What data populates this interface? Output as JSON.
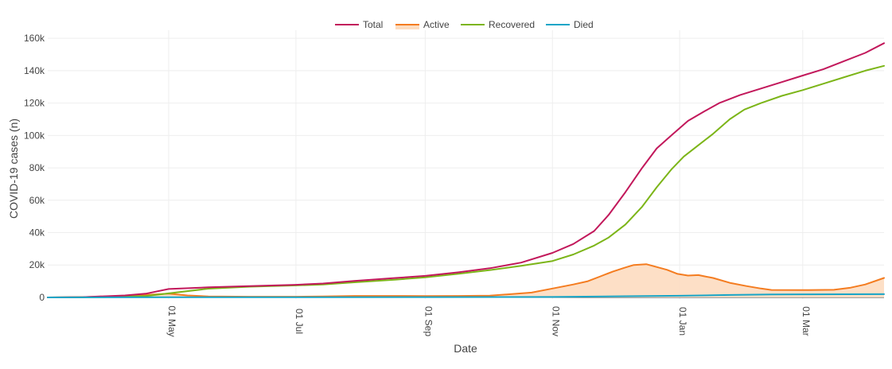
{
  "chart_data": {
    "type": "line",
    "xlabel": "Date",
    "ylabel": "COVID-19 cases (n)",
    "x_ticks": [
      {
        "day": 61,
        "label": "01 May"
      },
      {
        "day": 122,
        "label": "01 Jul"
      },
      {
        "day": 184,
        "label": "01 Sep"
      },
      {
        "day": 245,
        "label": "01 Nov"
      },
      {
        "day": 306,
        "label": "01 Jan"
      },
      {
        "day": 365,
        "label": "01 Mar"
      }
    ],
    "y_ticks": [
      {
        "value": 0,
        "label": "0"
      },
      {
        "value": 20000,
        "label": "20k"
      },
      {
        "value": 40000,
        "label": "40k"
      },
      {
        "value": 60000,
        "label": "60k"
      },
      {
        "value": 80000,
        "label": "80k"
      },
      {
        "value": 100000,
        "label": "100k"
      },
      {
        "value": 120000,
        "label": "120k"
      },
      {
        "value": 140000,
        "label": "140k"
      },
      {
        "value": 160000,
        "label": "160k"
      }
    ],
    "xlim": [
      3,
      404
    ],
    "ylim": [
      -1000,
      165000
    ],
    "grid": true,
    "legend_position": "top-center",
    "series": [
      {
        "name": "Total",
        "color": "#c2185b",
        "fill": false,
        "points": [
          [
            3,
            0
          ],
          [
            20,
            200
          ],
          [
            40,
            1200
          ],
          [
            50,
            2300
          ],
          [
            61,
            5200
          ],
          [
            80,
            6200
          ],
          [
            100,
            7000
          ],
          [
            122,
            7800
          ],
          [
            135,
            8600
          ],
          [
            150,
            10200
          ],
          [
            170,
            12000
          ],
          [
            184,
            13300
          ],
          [
            200,
            15500
          ],
          [
            215,
            18000
          ],
          [
            230,
            21500
          ],
          [
            245,
            27500
          ],
          [
            255,
            33000
          ],
          [
            265,
            41000
          ],
          [
            272,
            51000
          ],
          [
            280,
            65000
          ],
          [
            288,
            80000
          ],
          [
            295,
            92000
          ],
          [
            302,
            100000
          ],
          [
            310,
            109000
          ],
          [
            318,
            115000
          ],
          [
            325,
            120000
          ],
          [
            335,
            125000
          ],
          [
            345,
            129000
          ],
          [
            355,
            133000
          ],
          [
            365,
            137000
          ],
          [
            375,
            141000
          ],
          [
            385,
            146000
          ],
          [
            395,
            151000
          ],
          [
            404,
            157000
          ]
        ]
      },
      {
        "name": "Active",
        "color": "#f47c20",
        "fill": true,
        "fill_color": "#fddcc0",
        "points": [
          [
            3,
            0
          ],
          [
            20,
            200
          ],
          [
            40,
            900
          ],
          [
            50,
            1500
          ],
          [
            61,
            2300
          ],
          [
            70,
            1200
          ],
          [
            80,
            600
          ],
          [
            100,
            400
          ],
          [
            122,
            400
          ],
          [
            135,
            600
          ],
          [
            150,
            900
          ],
          [
            170,
            900
          ],
          [
            184,
            800
          ],
          [
            200,
            900
          ],
          [
            215,
            1100
          ],
          [
            225,
            2000
          ],
          [
            235,
            3000
          ],
          [
            245,
            5500
          ],
          [
            255,
            8000
          ],
          [
            262,
            10000
          ],
          [
            268,
            13000
          ],
          [
            274,
            16000
          ],
          [
            280,
            18500
          ],
          [
            284,
            20000
          ],
          [
            290,
            20500
          ],
          [
            293,
            19500
          ],
          [
            300,
            17000
          ],
          [
            305,
            14500
          ],
          [
            310,
            13500
          ],
          [
            315,
            13800
          ],
          [
            318,
            13000
          ],
          [
            322,
            12000
          ],
          [
            330,
            9000
          ],
          [
            338,
            7000
          ],
          [
            345,
            5500
          ],
          [
            350,
            4600
          ],
          [
            365,
            4500
          ],
          [
            380,
            4700
          ],
          [
            388,
            6000
          ],
          [
            395,
            8000
          ],
          [
            404,
            12000
          ]
        ]
      },
      {
        "name": "Recovered",
        "color": "#7cb518",
        "fill": false,
        "points": [
          [
            3,
            0
          ],
          [
            30,
            200
          ],
          [
            50,
            800
          ],
          [
            61,
            2500
          ],
          [
            80,
            5400
          ],
          [
            100,
            6600
          ],
          [
            122,
            7400
          ],
          [
            135,
            8000
          ],
          [
            150,
            9300
          ],
          [
            170,
            11000
          ],
          [
            184,
            12400
          ],
          [
            200,
            14600
          ],
          [
            215,
            16900
          ],
          [
            230,
            19500
          ],
          [
            245,
            22500
          ],
          [
            255,
            26500
          ],
          [
            265,
            32000
          ],
          [
            272,
            37000
          ],
          [
            280,
            45000
          ],
          [
            288,
            56000
          ],
          [
            295,
            68000
          ],
          [
            302,
            79000
          ],
          [
            308,
            87000
          ],
          [
            315,
            94000
          ],
          [
            322,
            101000
          ],
          [
            330,
            110000
          ],
          [
            337,
            116000
          ],
          [
            345,
            120000
          ],
          [
            355,
            124500
          ],
          [
            365,
            128000
          ],
          [
            375,
            132000
          ],
          [
            385,
            136000
          ],
          [
            395,
            140000
          ],
          [
            404,
            143000
          ]
        ]
      },
      {
        "name": "Died",
        "color": "#17a5c7",
        "fill": false,
        "points": [
          [
            3,
            0
          ],
          [
            61,
            100
          ],
          [
            122,
            150
          ],
          [
            184,
            200
          ],
          [
            245,
            300
          ],
          [
            280,
            700
          ],
          [
            306,
            1000
          ],
          [
            330,
            1500
          ],
          [
            350,
            1800
          ],
          [
            365,
            1900
          ],
          [
            404,
            2000
          ]
        ]
      }
    ]
  }
}
